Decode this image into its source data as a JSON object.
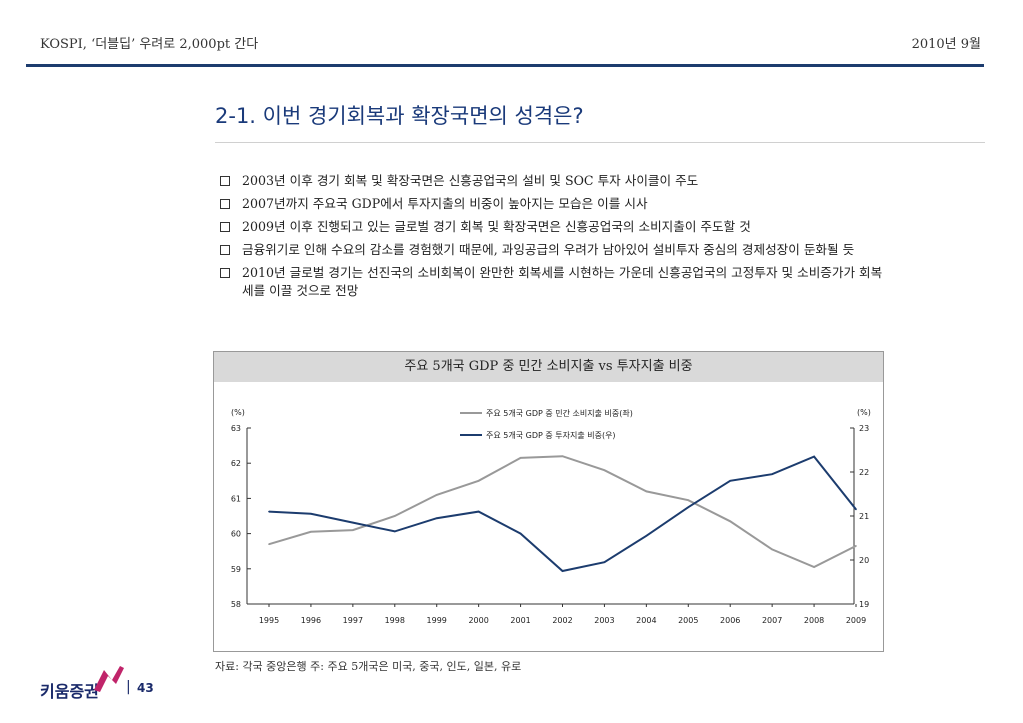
{
  "header": {
    "left": "KOSPI, ‘더블딥’ 우려로 2,000pt 간다",
    "right": "2010년 9월"
  },
  "title": "2-1. 이번 경기회복과 확장국면의 성격은?",
  "bullets": [
    "2003년 이후 경기 회복 및 확장국면은 신흥공업국의 설비 및 SOC 투자 사이클이 주도",
    "2007년까지 주요국 GDP에서 투자지출의 비중이 높아지는 모습은 이를 시사",
    "2009년 이후 진행되고 있는 글로벌 경기 회복 및 확장국면은 신흥공업국의 소비지출이 주도할 것",
    "금융위기로 인해 수요의 감소를 경험했기 때문에, 과잉공급의 우려가 남아있어 설비투자 중심의 경제성장이 둔화될 듯",
    "2010년 글로벌 경기는 선진국의 소비회복이 완만한 회복세를 시현하는 가운데 신흥공업국의 고정투자 및 소비증가가 회복세를 이끌 것으로 전망"
  ],
  "chart_data": {
    "type": "line",
    "title": "주요 5개국 GDP 중 민간 소비지출 vs  투자지출 비중",
    "categories": [
      "1995",
      "1996",
      "1997",
      "1998",
      "1999",
      "2000",
      "2001",
      "2002",
      "2003",
      "2004",
      "2005",
      "2006",
      "2007",
      "2008",
      "2009"
    ],
    "y_left": {
      "unit_label": "(%)",
      "ylim": [
        58,
        63
      ],
      "ticks": [
        "58",
        "59",
        "60",
        "61",
        "62",
        "63"
      ]
    },
    "y_right": {
      "unit_label": "(%)",
      "ylim": [
        19,
        23
      ],
      "ticks": [
        "19",
        "20",
        "21",
        "22",
        "23"
      ]
    },
    "series": [
      {
        "name": "주요 5개국 GDP 중 민간 소비지출 비중(좌)",
        "axis": "left",
        "color": "#999999",
        "values": [
          59.7,
          60.05,
          60.1,
          60.5,
          61.1,
          61.5,
          62.15,
          62.2,
          61.8,
          61.2,
          60.95,
          60.35,
          59.55,
          59.05,
          59.65
        ]
      },
      {
        "name": "주요 5개국 GDP 중 투자지출 비중(우)",
        "axis": "right",
        "color": "#1c3c6e",
        "values": [
          21.1,
          21.05,
          20.85,
          20.65,
          20.95,
          21.1,
          20.6,
          19.75,
          19.95,
          20.55,
          21.2,
          21.8,
          21.95,
          22.35,
          21.15
        ]
      }
    ],
    "legend_position": "top-center",
    "grid": false
  },
  "source": "자료: 각국 중앙은행 주: 주요 5개국은 미국, 중국, 인도, 일본, 유로",
  "footer": {
    "logo_text": "키움증권",
    "separator": "|",
    "page_number": "43"
  },
  "colors": {
    "accent": "#1c3c6e",
    "title": "#1a3a7a",
    "logo_arrow": "#c0246a"
  }
}
